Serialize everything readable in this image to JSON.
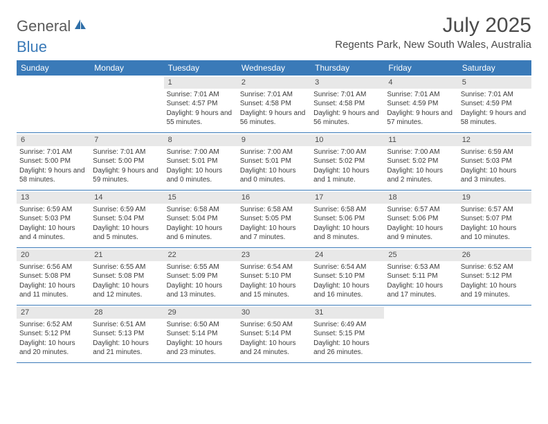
{
  "brand": {
    "text1": "General",
    "text2": "Blue"
  },
  "title": "July 2025",
  "location": "Regents Park, New South Wales, Australia",
  "colors": {
    "header_bg": "#3a7ab8",
    "daynum_bg": "#e8e8e8",
    "row_border": "#3a7ab8",
    "text": "#3a3a3a",
    "title_text": "#4a4a4a"
  },
  "day_headers": [
    "Sunday",
    "Monday",
    "Tuesday",
    "Wednesday",
    "Thursday",
    "Friday",
    "Saturday"
  ],
  "weeks": [
    [
      null,
      null,
      {
        "n": "1",
        "sr": "Sunrise: 7:01 AM",
        "ss": "Sunset: 4:57 PM",
        "dl": "Daylight: 9 hours and 55 minutes."
      },
      {
        "n": "2",
        "sr": "Sunrise: 7:01 AM",
        "ss": "Sunset: 4:58 PM",
        "dl": "Daylight: 9 hours and 56 minutes."
      },
      {
        "n": "3",
        "sr": "Sunrise: 7:01 AM",
        "ss": "Sunset: 4:58 PM",
        "dl": "Daylight: 9 hours and 56 minutes."
      },
      {
        "n": "4",
        "sr": "Sunrise: 7:01 AM",
        "ss": "Sunset: 4:59 PM",
        "dl": "Daylight: 9 hours and 57 minutes."
      },
      {
        "n": "5",
        "sr": "Sunrise: 7:01 AM",
        "ss": "Sunset: 4:59 PM",
        "dl": "Daylight: 9 hours and 58 minutes."
      }
    ],
    [
      {
        "n": "6",
        "sr": "Sunrise: 7:01 AM",
        "ss": "Sunset: 5:00 PM",
        "dl": "Daylight: 9 hours and 58 minutes."
      },
      {
        "n": "7",
        "sr": "Sunrise: 7:01 AM",
        "ss": "Sunset: 5:00 PM",
        "dl": "Daylight: 9 hours and 59 minutes."
      },
      {
        "n": "8",
        "sr": "Sunrise: 7:00 AM",
        "ss": "Sunset: 5:01 PM",
        "dl": "Daylight: 10 hours and 0 minutes."
      },
      {
        "n": "9",
        "sr": "Sunrise: 7:00 AM",
        "ss": "Sunset: 5:01 PM",
        "dl": "Daylight: 10 hours and 0 minutes."
      },
      {
        "n": "10",
        "sr": "Sunrise: 7:00 AM",
        "ss": "Sunset: 5:02 PM",
        "dl": "Daylight: 10 hours and 1 minute."
      },
      {
        "n": "11",
        "sr": "Sunrise: 7:00 AM",
        "ss": "Sunset: 5:02 PM",
        "dl": "Daylight: 10 hours and 2 minutes."
      },
      {
        "n": "12",
        "sr": "Sunrise: 6:59 AM",
        "ss": "Sunset: 5:03 PM",
        "dl": "Daylight: 10 hours and 3 minutes."
      }
    ],
    [
      {
        "n": "13",
        "sr": "Sunrise: 6:59 AM",
        "ss": "Sunset: 5:03 PM",
        "dl": "Daylight: 10 hours and 4 minutes."
      },
      {
        "n": "14",
        "sr": "Sunrise: 6:59 AM",
        "ss": "Sunset: 5:04 PM",
        "dl": "Daylight: 10 hours and 5 minutes."
      },
      {
        "n": "15",
        "sr": "Sunrise: 6:58 AM",
        "ss": "Sunset: 5:04 PM",
        "dl": "Daylight: 10 hours and 6 minutes."
      },
      {
        "n": "16",
        "sr": "Sunrise: 6:58 AM",
        "ss": "Sunset: 5:05 PM",
        "dl": "Daylight: 10 hours and 7 minutes."
      },
      {
        "n": "17",
        "sr": "Sunrise: 6:58 AM",
        "ss": "Sunset: 5:06 PM",
        "dl": "Daylight: 10 hours and 8 minutes."
      },
      {
        "n": "18",
        "sr": "Sunrise: 6:57 AM",
        "ss": "Sunset: 5:06 PM",
        "dl": "Daylight: 10 hours and 9 minutes."
      },
      {
        "n": "19",
        "sr": "Sunrise: 6:57 AM",
        "ss": "Sunset: 5:07 PM",
        "dl": "Daylight: 10 hours and 10 minutes."
      }
    ],
    [
      {
        "n": "20",
        "sr": "Sunrise: 6:56 AM",
        "ss": "Sunset: 5:08 PM",
        "dl": "Daylight: 10 hours and 11 minutes."
      },
      {
        "n": "21",
        "sr": "Sunrise: 6:55 AM",
        "ss": "Sunset: 5:08 PM",
        "dl": "Daylight: 10 hours and 12 minutes."
      },
      {
        "n": "22",
        "sr": "Sunrise: 6:55 AM",
        "ss": "Sunset: 5:09 PM",
        "dl": "Daylight: 10 hours and 13 minutes."
      },
      {
        "n": "23",
        "sr": "Sunrise: 6:54 AM",
        "ss": "Sunset: 5:10 PM",
        "dl": "Daylight: 10 hours and 15 minutes."
      },
      {
        "n": "24",
        "sr": "Sunrise: 6:54 AM",
        "ss": "Sunset: 5:10 PM",
        "dl": "Daylight: 10 hours and 16 minutes."
      },
      {
        "n": "25",
        "sr": "Sunrise: 6:53 AM",
        "ss": "Sunset: 5:11 PM",
        "dl": "Daylight: 10 hours and 17 minutes."
      },
      {
        "n": "26",
        "sr": "Sunrise: 6:52 AM",
        "ss": "Sunset: 5:12 PM",
        "dl": "Daylight: 10 hours and 19 minutes."
      }
    ],
    [
      {
        "n": "27",
        "sr": "Sunrise: 6:52 AM",
        "ss": "Sunset: 5:12 PM",
        "dl": "Daylight: 10 hours and 20 minutes."
      },
      {
        "n": "28",
        "sr": "Sunrise: 6:51 AM",
        "ss": "Sunset: 5:13 PM",
        "dl": "Daylight: 10 hours and 21 minutes."
      },
      {
        "n": "29",
        "sr": "Sunrise: 6:50 AM",
        "ss": "Sunset: 5:14 PM",
        "dl": "Daylight: 10 hours and 23 minutes."
      },
      {
        "n": "30",
        "sr": "Sunrise: 6:50 AM",
        "ss": "Sunset: 5:14 PM",
        "dl": "Daylight: 10 hours and 24 minutes."
      },
      {
        "n": "31",
        "sr": "Sunrise: 6:49 AM",
        "ss": "Sunset: 5:15 PM",
        "dl": "Daylight: 10 hours and 26 minutes."
      },
      null,
      null
    ]
  ]
}
